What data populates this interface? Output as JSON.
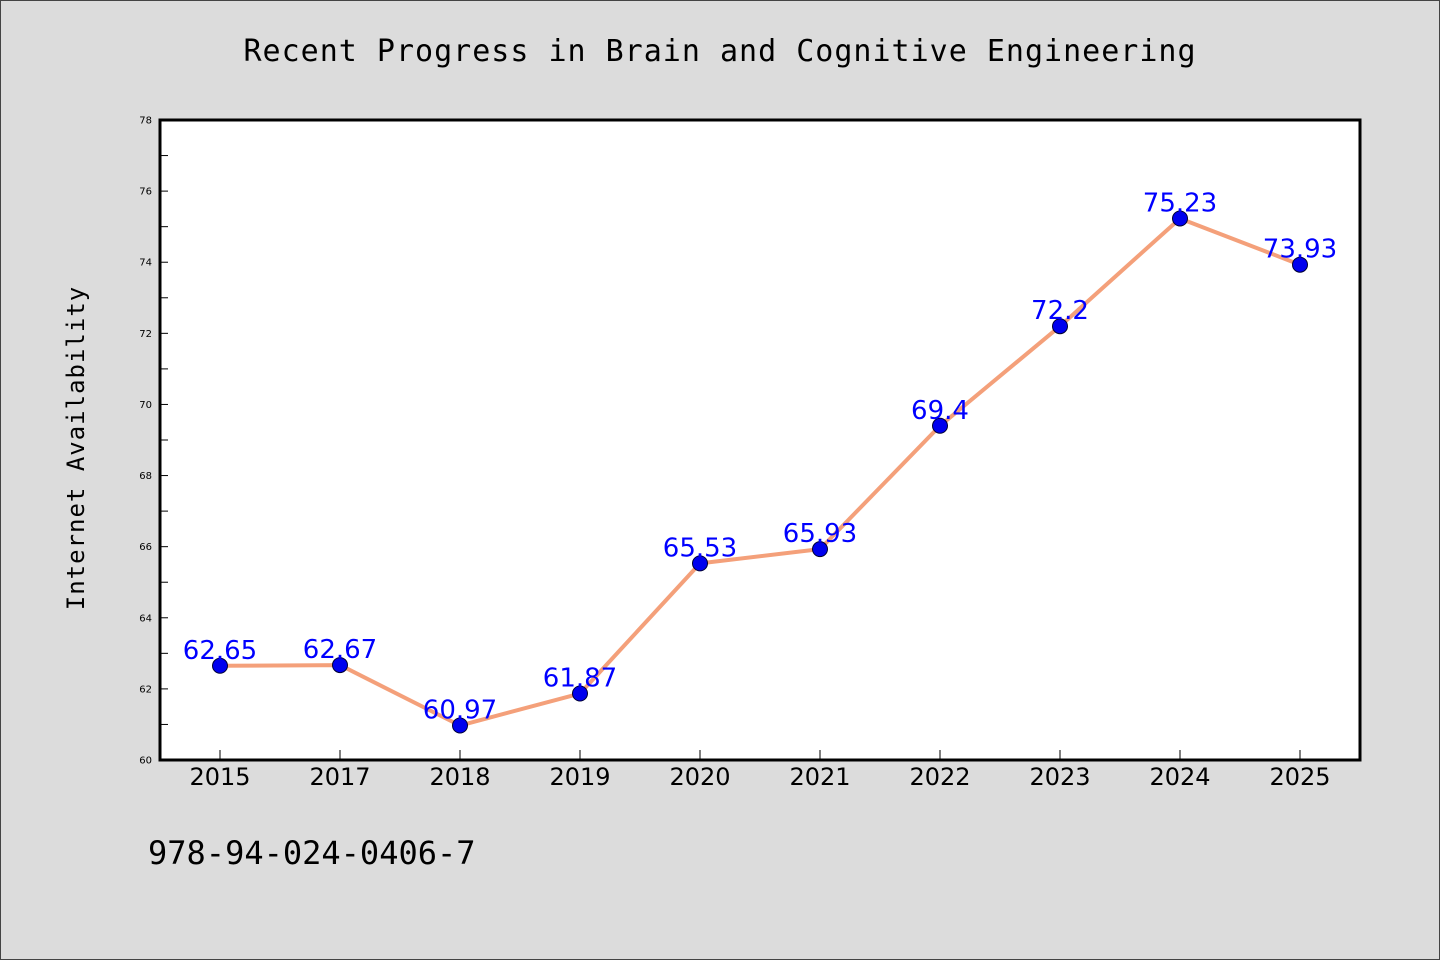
{
  "chart_data": {
    "type": "line",
    "title": "Recent Progress in Brain and Cognitive Engineering",
    "xlabel": "",
    "ylabel": "Internet Availability",
    "categories": [
      "2015",
      "2017",
      "2018",
      "2019",
      "2020",
      "2021",
      "2022",
      "2023",
      "2024",
      "2025"
    ],
    "series": [
      {
        "values": [
          62.65,
          62.67,
          60.97,
          61.87,
          65.53,
          65.93,
          69.4,
          72.2,
          75.23,
          73.93
        ],
        "labels": [
          "62.65",
          "62.67",
          "60.97",
          "61.87",
          "65.53",
          "65.93",
          "69.4",
          "72.2",
          "75.23",
          "73.93"
        ],
        "line_color": "#f4a07a",
        "marker_color": "#0000ee"
      }
    ],
    "ylim": [
      60,
      78
    ],
    "yticks": [
      60,
      62,
      64,
      66,
      68,
      70,
      72,
      74,
      76,
      78
    ],
    "ytick_labels": [
      "60",
      "62",
      "64",
      "66",
      "68",
      "70",
      "72",
      "74",
      "76",
      "78"
    ],
    "grid": false,
    "legend": "none",
    "label_color": "#0000ff"
  },
  "colors": {
    "background": "#dcdcdc",
    "plot_background": "#ffffff"
  },
  "footer": {
    "code": "978-94-024-0406-7"
  }
}
